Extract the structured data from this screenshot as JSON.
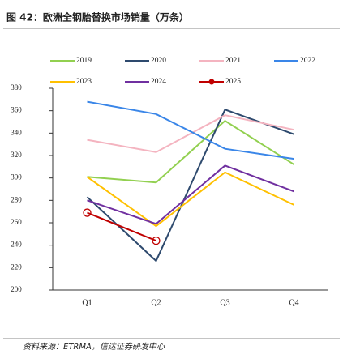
{
  "chart_data": {
    "type": "line",
    "title": "图 42：欧洲全钢胎替换市场销量（万条）",
    "source": "资料来源：ETRMA，信达证券研发中心",
    "categories": [
      "Q1",
      "Q2",
      "Q3",
      "Q4"
    ],
    "ylim": [
      200,
      380
    ],
    "yticks": [
      200,
      220,
      240,
      260,
      280,
      300,
      320,
      340,
      360,
      380
    ],
    "series": [
      {
        "name": "2019",
        "color": "#92d050",
        "values": [
          301,
          296,
          351,
          312
        ]
      },
      {
        "name": "2020",
        "color": "#2e4a6e",
        "values": [
          283,
          226,
          361,
          339
        ]
      },
      {
        "name": "2021",
        "color": "#f4b4c0",
        "values": [
          334,
          323,
          356,
          343
        ]
      },
      {
        "name": "2022",
        "color": "#3a86e8",
        "values": [
          368,
          357,
          326,
          317
        ]
      },
      {
        "name": "2023",
        "color": "#ffc000",
        "values": [
          301,
          257,
          305,
          276
        ]
      },
      {
        "name": "2024",
        "color": "#7030a0",
        "values": [
          280,
          259,
          311,
          288
        ]
      },
      {
        "name": "2025",
        "color": "#c00000",
        "values": [
          269,
          244,
          null,
          null
        ],
        "marker": "circle"
      }
    ]
  }
}
